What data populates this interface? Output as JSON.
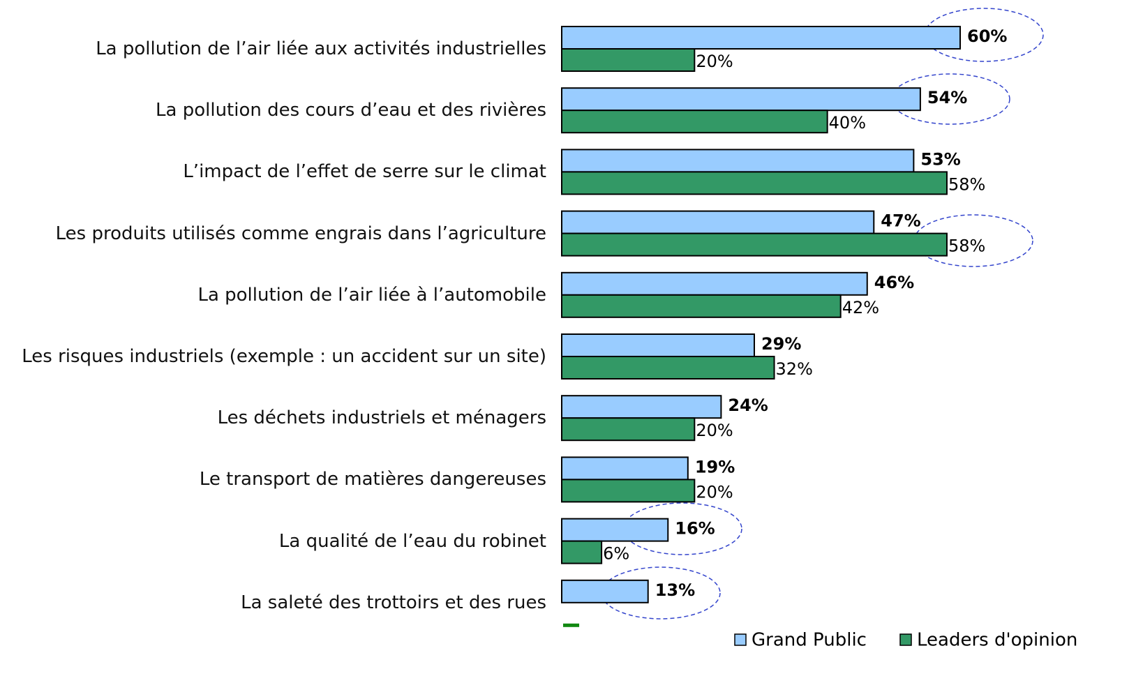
{
  "chart_data": {
    "type": "bar",
    "orientation": "horizontal",
    "categories": [
      "La pollution de l’air liée aux activités industrielles",
      "La pollution des cours d’eau et des rivières",
      "L’impact de l’effet de serre sur le climat",
      "Les produits utilisés comme engrais dans l’agriculture",
      "La pollution de l’air liée à l’automobile",
      "Les risques industriels (exemple : un accident sur un site)",
      "Les déchets industriels et ménagers",
      "Le transport de matières dangereuses",
      "La qualité de l’eau du robinet",
      "La saleté des trottoirs et des rues"
    ],
    "series": [
      {
        "name": "Grand Public",
        "color": "#99ccff",
        "values": [
          60,
          54,
          53,
          47,
          46,
          29,
          24,
          19,
          16,
          13
        ],
        "value_labels": [
          "60%",
          "54%",
          "53%",
          "47%",
          "46%",
          "29%",
          "24%",
          "19%",
          "16%",
          "13%"
        ]
      },
      {
        "name": "Leaders d'opinion",
        "color": "#339966",
        "values": [
          20,
          40,
          58,
          58,
          42,
          32,
          20,
          20,
          6,
          2
        ],
        "value_labels": [
          "20%",
          "40%",
          "58%",
          "58%",
          "42%",
          "32%",
          "20%",
          "20%",
          "6%",
          null
        ]
      }
    ],
    "xlim": [
      0,
      60
    ],
    "legend": "bottom-right"
  }
}
